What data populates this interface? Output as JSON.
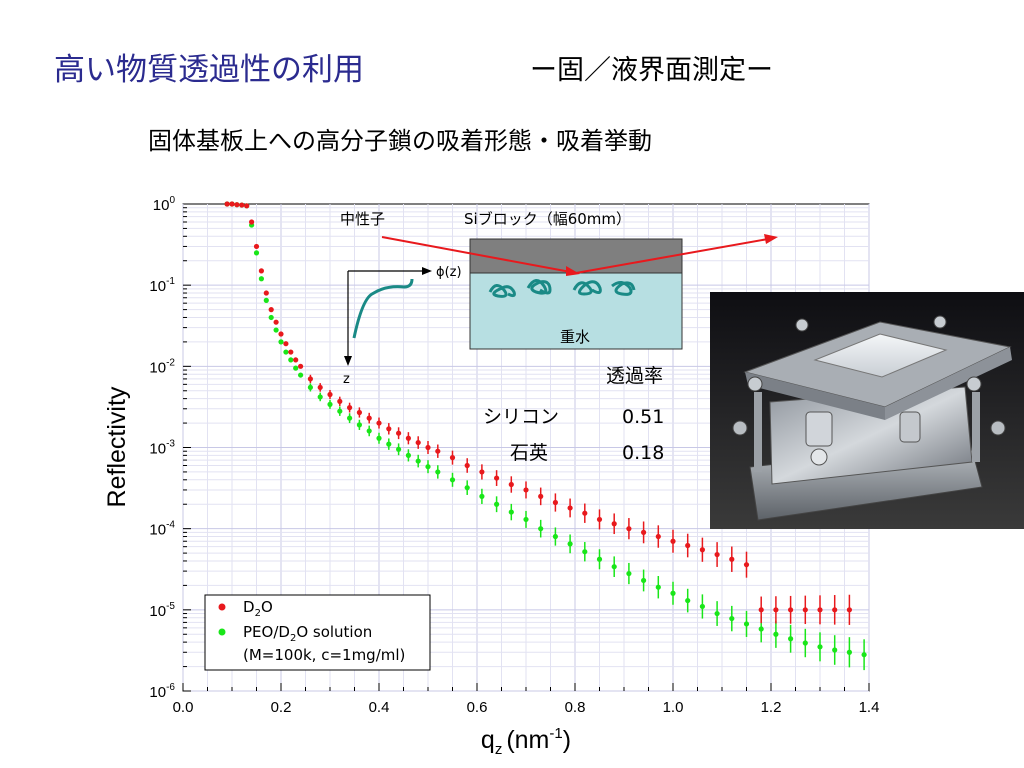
{
  "slide": {
    "title": "高い物質透過性の利用",
    "subtitle": "ー固／液界面測定ー",
    "heading": "固体基板上への高分子鎖の吸着形態・吸着挙動"
  },
  "inset": {
    "neutron_label": "中性子",
    "block_label": "Siブロック（幅60mm）",
    "water_label": "重水",
    "phi_label": "ϕ(z)",
    "z_label": "z",
    "transmission_header": "透過率",
    "materials": [
      {
        "name": "シリコン",
        "value": "0.51"
      },
      {
        "name": "石英",
        "value": "0.18"
      }
    ]
  },
  "colors": {
    "title": "#2b2b8f",
    "series_d2o": "#e8191d",
    "series_peo": "#19e619",
    "beam": "#e8191d",
    "block": "#7f7f7f",
    "water": "#b7dfe2",
    "profile": "#1a8a86",
    "polymer": "#1a8a86"
  },
  "chart_data": {
    "type": "scatter",
    "ylabel": "Reflectivity",
    "xlabel_main": "q",
    "xlabel_sub": "z",
    "xlabel_unit": "(nm",
    "xlabel_sup": "-1",
    "xlabel_close": ")",
    "xlim": [
      0.0,
      1.4
    ],
    "ylim_log10": [
      -6,
      0
    ],
    "yscale": "log",
    "grid": true,
    "legend_position": "bottom-left",
    "x_ticks": [
      "0.0",
      "0.2",
      "0.4",
      "0.6",
      "0.8",
      "1.0",
      "1.2",
      "1.4"
    ],
    "y_ticks": [
      {
        "base": "10",
        "exp": "0"
      },
      {
        "base": "10",
        "exp": "-1"
      },
      {
        "base": "10",
        "exp": "-2"
      },
      {
        "base": "10",
        "exp": "-3"
      },
      {
        "base": "10",
        "exp": "-4"
      },
      {
        "base": "10",
        "exp": "-5"
      },
      {
        "base": "10",
        "exp": "-6"
      }
    ],
    "series": [
      {
        "name": "D2O",
        "legend_parts": [
          "D",
          "2",
          "O"
        ],
        "x": [
          0.09,
          0.1,
          0.11,
          0.12,
          0.13,
          0.14,
          0.15,
          0.16,
          0.17,
          0.18,
          0.19,
          0.2,
          0.21,
          0.22,
          0.23,
          0.24,
          0.26,
          0.28,
          0.3,
          0.32,
          0.34,
          0.36,
          0.38,
          0.4,
          0.42,
          0.44,
          0.46,
          0.48,
          0.5,
          0.52,
          0.55,
          0.58,
          0.61,
          0.64,
          0.67,
          0.7,
          0.73,
          0.76,
          0.79,
          0.82,
          0.85,
          0.88,
          0.91,
          0.94,
          0.97,
          1.0,
          1.03,
          1.06,
          1.09,
          1.12,
          1.15,
          1.18,
          1.21,
          1.24,
          1.27,
          1.3,
          1.33,
          1.36
        ],
        "y": [
          1.0,
          1.0,
          0.98,
          0.97,
          0.95,
          0.6,
          0.3,
          0.15,
          0.08,
          0.05,
          0.035,
          0.025,
          0.019,
          0.015,
          0.012,
          0.01,
          0.007,
          0.0055,
          0.0045,
          0.0037,
          0.0031,
          0.0027,
          0.0023,
          0.002,
          0.0017,
          0.0015,
          0.0013,
          0.00115,
          0.001,
          0.0009,
          0.00075,
          0.0006,
          0.0005,
          0.00042,
          0.00035,
          0.0003,
          0.00025,
          0.00021,
          0.00018,
          0.000155,
          0.00013,
          0.000115,
          0.0001,
          9e-05,
          8e-05,
          7e-05,
          6.2e-05,
          5.5e-05,
          4.8e-05,
          4.2e-05,
          3.6e-05,
          1e-05,
          1e-05,
          1e-05,
          1e-05,
          1e-05,
          1e-05,
          1e-05
        ]
      },
      {
        "name": "PEO/D2O solution",
        "legend_parts": [
          "PEO/D",
          "2",
          "O solution"
        ],
        "legend_note": "(M=100k, c=1mg/ml)",
        "x": [
          0.09,
          0.1,
          0.11,
          0.12,
          0.13,
          0.14,
          0.15,
          0.16,
          0.17,
          0.18,
          0.19,
          0.2,
          0.21,
          0.22,
          0.23,
          0.24,
          0.26,
          0.28,
          0.3,
          0.32,
          0.34,
          0.36,
          0.38,
          0.4,
          0.42,
          0.44,
          0.46,
          0.48,
          0.5,
          0.52,
          0.55,
          0.58,
          0.61,
          0.64,
          0.67,
          0.7,
          0.73,
          0.76,
          0.79,
          0.82,
          0.85,
          0.88,
          0.91,
          0.94,
          0.97,
          1.0,
          1.03,
          1.06,
          1.09,
          1.12,
          1.15,
          1.18,
          1.21,
          1.24,
          1.27,
          1.3,
          1.33,
          1.36,
          1.39
        ],
        "y": [
          1.0,
          1.0,
          0.98,
          0.97,
          0.95,
          0.55,
          0.25,
          0.12,
          0.065,
          0.04,
          0.028,
          0.02,
          0.015,
          0.012,
          0.0095,
          0.0078,
          0.0055,
          0.0042,
          0.0034,
          0.0028,
          0.0023,
          0.0019,
          0.0016,
          0.0013,
          0.0011,
          0.00095,
          0.0008,
          0.00068,
          0.00058,
          0.0005,
          0.0004,
          0.00032,
          0.00025,
          0.0002,
          0.00016,
          0.00013,
          0.0001,
          8e-05,
          6.5e-05,
          5.2e-05,
          4.2e-05,
          3.4e-05,
          2.8e-05,
          2.3e-05,
          1.9e-05,
          1.6e-05,
          1.3e-05,
          1.1e-05,
          9e-06,
          7.8e-06,
          6.7e-06,
          5.8e-06,
          5e-06,
          4.4e-06,
          3.9e-06,
          3.5e-06,
          3.2e-06,
          3e-06,
          2.8e-06
        ]
      }
    ]
  }
}
